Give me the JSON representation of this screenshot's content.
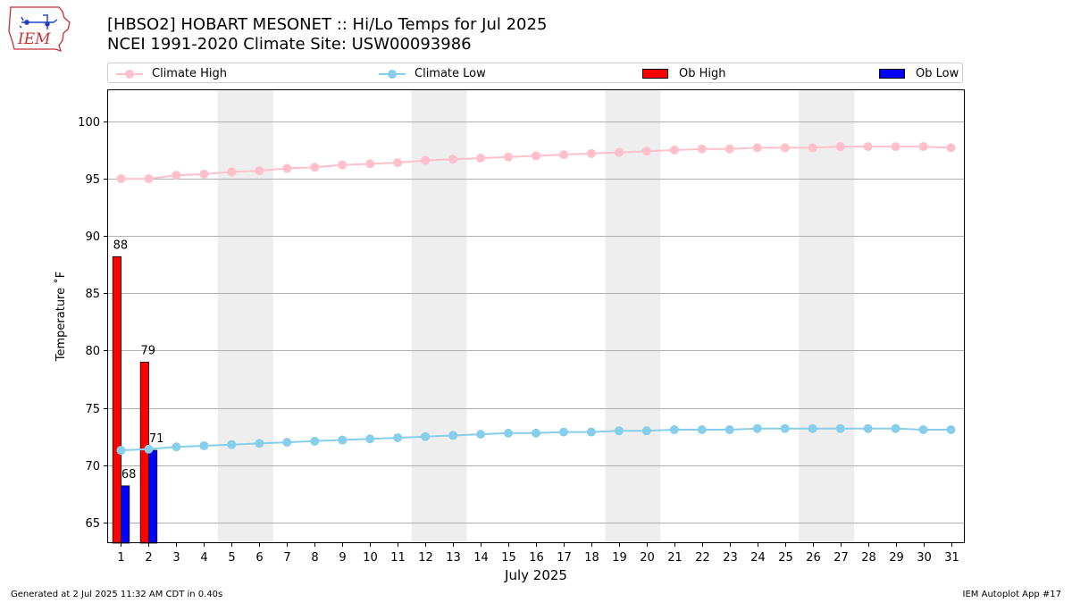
{
  "header": {
    "title_line1": "[HBSO2] HOBART MESONET :: Hi/Lo Temps for Jul 2025",
    "title_line2": "NCEI 1991-2020 Climate Site: USW00093986",
    "logo_text": "IEM"
  },
  "legend": {
    "climate_high": "Climate High",
    "climate_low": "Climate Low",
    "ob_high": "Ob High",
    "ob_low": "Ob Low"
  },
  "footer": {
    "generated": "Generated at 2 Jul 2025 11:32 AM CDT in 0.40s",
    "app": "IEM Autoplot App #17"
  },
  "colors": {
    "climate_high": "#ffc0cb",
    "climate_low": "#87ceeb",
    "ob_high": "#ff0000",
    "ob_low": "#0000ff",
    "weekend_band": "#eeeeee",
    "grid": "#b0b0b0"
  },
  "chart_data": {
    "type": "bar",
    "xlabel": "July 2025",
    "ylabel": "Temperature ˚F",
    "xlim": [
      0.5,
      31.5
    ],
    "ylim": [
      63.2,
      102.8
    ],
    "yticks": [
      65,
      70,
      75,
      80,
      85,
      90,
      95,
      100
    ],
    "x": [
      1,
      2,
      3,
      4,
      5,
      6,
      7,
      8,
      9,
      10,
      11,
      12,
      13,
      14,
      15,
      16,
      17,
      18,
      19,
      20,
      21,
      22,
      23,
      24,
      25,
      26,
      27,
      28,
      29,
      30,
      31
    ],
    "weekends": [
      [
        5,
        6
      ],
      [
        12,
        13
      ],
      [
        19,
        20
      ],
      [
        26,
        27
      ]
    ],
    "grid": "horizontal",
    "legend_position": "top",
    "series": [
      {
        "name": "Climate High",
        "kind": "line",
        "values": [
          95.0,
          95.0,
          95.3,
          95.4,
          95.6,
          95.7,
          95.9,
          96.0,
          96.2,
          96.3,
          96.4,
          96.6,
          96.7,
          96.8,
          96.9,
          97.0,
          97.1,
          97.2,
          97.3,
          97.4,
          97.5,
          97.6,
          97.6,
          97.7,
          97.7,
          97.7,
          97.8,
          97.8,
          97.8,
          97.8,
          97.7
        ]
      },
      {
        "name": "Climate Low",
        "kind": "line",
        "values": [
          71.3,
          71.4,
          71.6,
          71.7,
          71.8,
          71.9,
          72.0,
          72.1,
          72.2,
          72.3,
          72.4,
          72.5,
          72.6,
          72.7,
          72.8,
          72.8,
          72.9,
          72.9,
          73.0,
          73.0,
          73.1,
          73.1,
          73.1,
          73.2,
          73.2,
          73.2,
          73.2,
          73.2,
          73.2,
          73.1,
          73.1
        ]
      },
      {
        "name": "Ob High",
        "kind": "bar",
        "x": [
          1,
          2
        ],
        "values": [
          88.2,
          79.0
        ],
        "labels": [
          "88",
          "79"
        ]
      },
      {
        "name": "Ob Low",
        "kind": "bar",
        "x": [
          1,
          2
        ],
        "values": [
          68.2,
          71.3
        ],
        "labels": [
          "68",
          "71"
        ]
      }
    ]
  }
}
